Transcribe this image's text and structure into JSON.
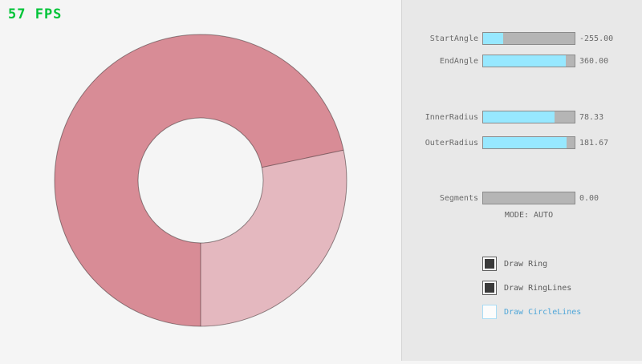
{
  "fps_label": "57 FPS",
  "ring": {
    "start_angle": -255.0,
    "end_angle": 360.0,
    "inner_radius": 78.33,
    "outer_radius": 181.67,
    "segments": 0.0,
    "mode": "AUTO",
    "color_main": "#d88c96",
    "color_overlap": "#e4b8bf",
    "outline_color": "rgba(0,0,0,0.4)"
  },
  "panel": {
    "sliders": [
      {
        "label": "StartAngle",
        "value": "-255.00",
        "fill": 0.217
      },
      {
        "label": "EndAngle",
        "value": "360.00",
        "fill": 0.9
      },
      {
        "label": "InnerRadius",
        "value": "78.33",
        "fill": 0.783
      },
      {
        "label": "OuterRadius",
        "value": "181.67",
        "fill": 0.908
      },
      {
        "label": "Segments",
        "value": "0.00",
        "fill": 0
      }
    ],
    "mode_text": "MODE: AUTO",
    "checkboxes": [
      {
        "label": "Draw Ring",
        "checked": true
      },
      {
        "label": "Draw RingLines",
        "checked": true
      },
      {
        "label": "Draw CircleLines",
        "checked": false
      }
    ]
  },
  "colors": {
    "background": "#f5f5f5",
    "panel_bg": "#e8e8e8",
    "panel_divider": "#d5d5d5",
    "slider_fill": "#97e8ff",
    "slider_track": "#b5b5b5",
    "slider_border": "#8b8b8b",
    "fps_green": "#00c437",
    "label_gray": "#6a6a6a",
    "unchecked_blue": "#4fa6d8"
  }
}
